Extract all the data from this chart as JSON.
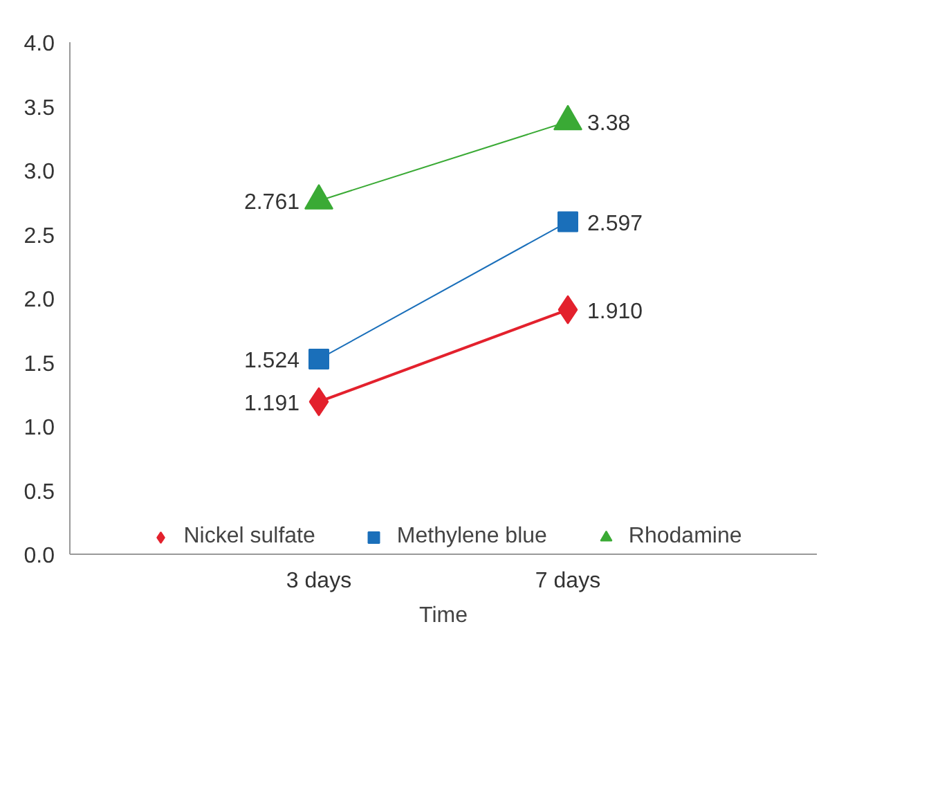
{
  "chart_data": {
    "type": "line",
    "xlabel": "Time",
    "categories": [
      "3 days",
      "7 days"
    ],
    "series": [
      {
        "name": "Nickel sulfate",
        "color": "#e3212d",
        "marker": "diamond",
        "values": [
          1.191,
          1.91
        ]
      },
      {
        "name": "Methylene blue",
        "color": "#1a6fba",
        "marker": "square",
        "values": [
          1.524,
          2.597
        ]
      },
      {
        "name": "Rhodamine",
        "color": "#3aaa35",
        "marker": "triangle",
        "values": [
          2.761,
          3.38
        ]
      }
    ],
    "value_labels": [
      [
        "1.191",
        "1.910"
      ],
      [
        "1.524",
        "2.597"
      ],
      [
        "2.761",
        "3.38"
      ]
    ],
    "ylim": [
      0,
      4
    ],
    "yticks": [
      {
        "value": 0,
        "label": "0.0"
      },
      {
        "value": 0.5,
        "label": "0.5"
      },
      {
        "value": 1,
        "label": "1.0"
      },
      {
        "value": 1.5,
        "label": "1.5"
      },
      {
        "value": 2,
        "label": "2.0"
      },
      {
        "value": 2.5,
        "label": "2.5"
      },
      {
        "value": 3,
        "label": "3.0"
      },
      {
        "value": 3.5,
        "label": "3.5"
      },
      {
        "value": 4,
        "label": "4.0"
      }
    ],
    "grid": false,
    "legend": "bottom",
    "line_style": "solid"
  }
}
